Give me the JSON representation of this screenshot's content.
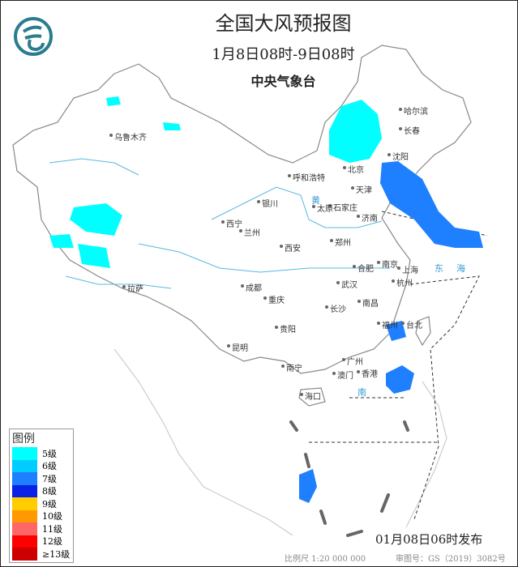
{
  "header": {
    "title": "全国大风预报图",
    "period": "1月8日08时-9日08时",
    "issuer": "中央气象台"
  },
  "logo": {
    "icon": "cma-logo-icon",
    "color": "#2a7d8e"
  },
  "cities": [
    "乌鲁木齐",
    "哈尔滨",
    "长春",
    "沈阳",
    "北京",
    "天津",
    "呼和浩特",
    "银川",
    "石家庄",
    "太原",
    "济南",
    "西宁",
    "兰州",
    "郑州",
    "西安",
    "南京",
    "合肥",
    "上海",
    "武汉",
    "杭州",
    "成都",
    "重庆",
    "长沙",
    "南昌",
    "拉萨",
    "贵阳",
    "福州",
    "台北",
    "昆明",
    "广州",
    "南宁",
    "澳门",
    "香港",
    "海口"
  ],
  "seas": [
    "黄",
    "东",
    "海",
    "南"
  ],
  "legend": {
    "title": "图例",
    "items": [
      {
        "label": "5级",
        "color": "#00ffff"
      },
      {
        "label": "6级",
        "color": "#00ccff"
      },
      {
        "label": "7级",
        "color": "#1e7fff"
      },
      {
        "label": "8级",
        "color": "#0a22e6"
      },
      {
        "label": "9级",
        "color": "#ffcc00"
      },
      {
        "label": "10级",
        "color": "#ff9900"
      },
      {
        "label": "11级",
        "color": "#ff6666"
      },
      {
        "label": "12级",
        "color": "#ff0000"
      },
      {
        "label": "≥13级",
        "color": "#cc0000"
      }
    ]
  },
  "footer": {
    "issued": "01月08日06时发布",
    "scale": "比例尺 1:20 000 000",
    "review": "审图号：GS（2019）3082号"
  }
}
